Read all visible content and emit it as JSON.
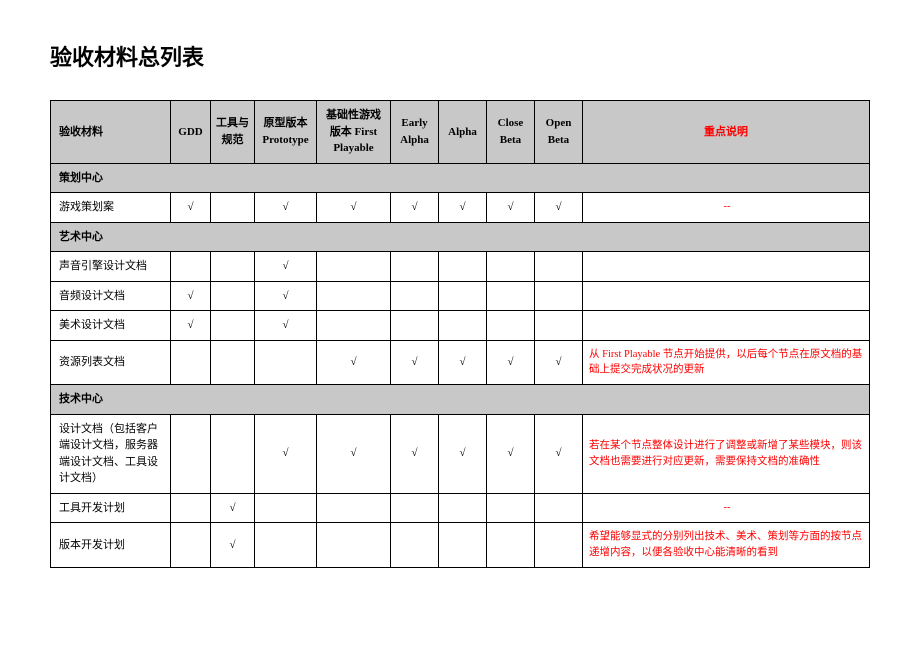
{
  "title": "验收材料总列表",
  "checkMark": "√",
  "dash": "--",
  "columns": [
    "验收材料",
    "GDD",
    "工具与规范",
    "原型版本Prototype",
    "基础性游戏版本 First Playable",
    "Early Alpha",
    "Alpha",
    "Close Beta",
    "Open Beta",
    "重点说明"
  ],
  "sections": [
    {
      "name": "策划中心",
      "rows": [
        {
          "name": "游戏策划案",
          "cells": [
            "√",
            "",
            "√",
            "√",
            "√",
            "√",
            "√",
            "√"
          ],
          "note": "--",
          "noteCenter": true
        }
      ]
    },
    {
      "name": "艺术中心",
      "rows": [
        {
          "name": "声音引擎设计文档",
          "cells": [
            "",
            "",
            "√",
            "",
            "",
            "",
            "",
            ""
          ],
          "note": "",
          "noteCenter": true
        },
        {
          "name": "音频设计文档",
          "cells": [
            "√",
            "",
            "√",
            "",
            "",
            "",
            "",
            ""
          ],
          "note": "",
          "noteCenter": true
        },
        {
          "name": "美术设计文档",
          "cells": [
            "√",
            "",
            "√",
            "",
            "",
            "",
            "",
            ""
          ],
          "note": "",
          "noteCenter": true
        },
        {
          "name": "资源列表文档",
          "cells": [
            "",
            "",
            "",
            "√",
            "√",
            "√",
            "√",
            "√"
          ],
          "note": "从 First Playable 节点开始提供，以后每个节点在原文档的基础上提交完成状况的更新",
          "noteCenter": false
        }
      ]
    },
    {
      "name": "技术中心",
      "rows": [
        {
          "name": "设计文档（包括客户端设计文档，服务器端设计文档、工具设计文档）",
          "cells": [
            "",
            "",
            "√",
            "√",
            "√",
            "√",
            "√",
            "√"
          ],
          "note": "若在某个节点整体设计进行了调整或新增了某些模块，则该文档也需要进行对应更新，需要保持文档的准确性",
          "noteCenter": false
        },
        {
          "name": "工具开发计划",
          "cells": [
            "",
            "√",
            "",
            "",
            "",
            "",
            "",
            ""
          ],
          "note": "--",
          "noteCenter": true
        },
        {
          "name": "版本开发计划",
          "cells": [
            "",
            "√",
            "",
            "",
            "",
            "",
            "",
            ""
          ],
          "note": "希望能够显式的分别列出技术、美术、策划等方面的按节点递增内容，以便各验收中心能清晰的看到",
          "noteCenter": false
        }
      ]
    }
  ]
}
